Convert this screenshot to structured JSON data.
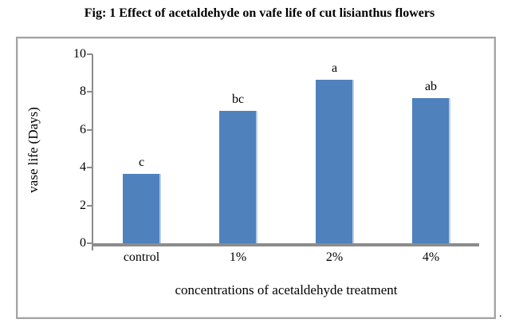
{
  "page": {
    "title": "Fig: 1 Effect of acetaldehyde on vafe life of cut lisianthus flowers",
    "trailing_period": "."
  },
  "chart_data": {
    "type": "bar",
    "categories": [
      "control",
      "1%",
      "2%",
      "4%"
    ],
    "values": [
      3.67,
      7.0,
      8.67,
      7.67
    ],
    "bar_labels": [
      "c",
      "bc",
      "a",
      "ab"
    ],
    "xlabel": "concentrations of acetaldehyde treatment",
    "ylabel": "vase life (Days)",
    "ylim": [
      0,
      10
    ],
    "yticks": [
      0,
      2,
      4,
      6,
      8,
      10
    ],
    "grid": false,
    "legend": "none",
    "colors": {
      "bar": "#4f81bd",
      "bar_edge_highlight": "#b9cde5",
      "axis": "#8c8c8c",
      "text": "#000000"
    }
  }
}
